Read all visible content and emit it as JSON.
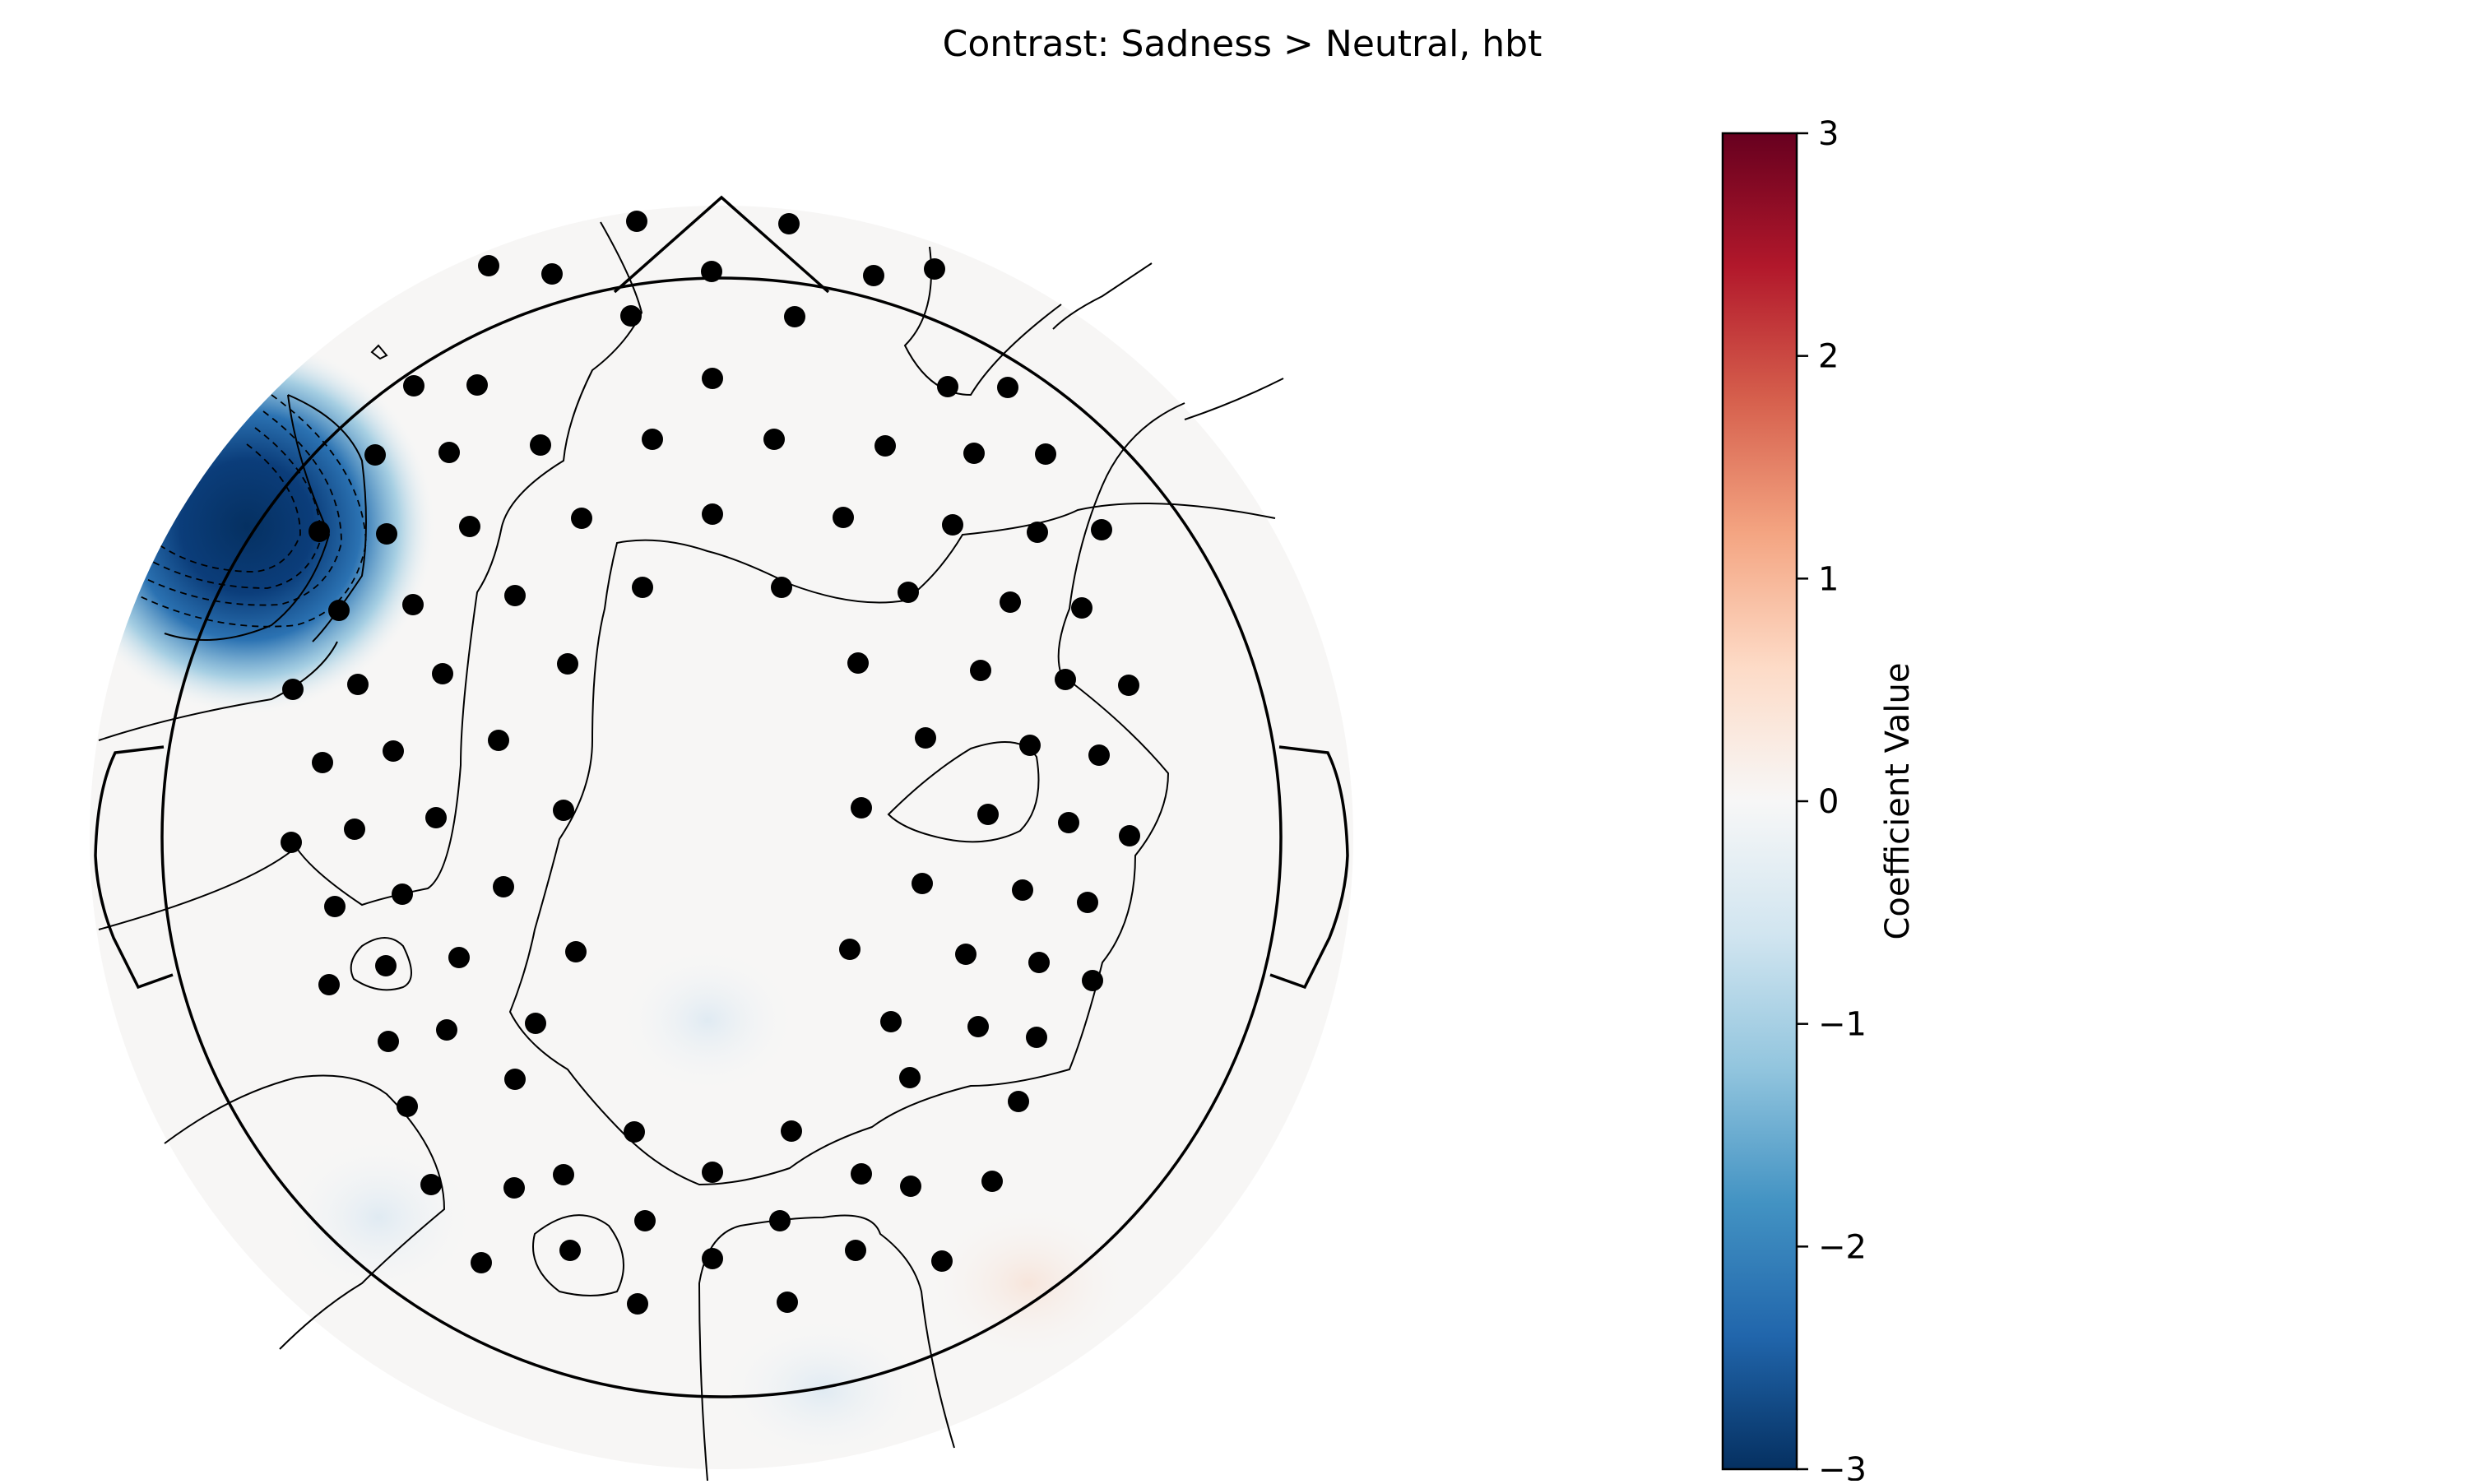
{
  "chart_data": {
    "type": "heatmap",
    "title": "Contrast: Sadness > Neutral, hbt",
    "colorbar": {
      "label": "Coefficient Value",
      "range": [
        -3,
        3
      ],
      "ticks": [
        3,
        2,
        1,
        0,
        -1,
        -2,
        -3
      ],
      "tick_labels": [
        "3",
        "2",
        "1",
        "0",
        "−1",
        "−2",
        "−3"
      ],
      "colormap": "RdBu_r",
      "colors": [
        "#053061",
        "#2166ac",
        "#4393c3",
        "#92c5de",
        "#d1e5f0",
        "#f7f7f7",
        "#fddbc7",
        "#f4a582",
        "#d6604d",
        "#b2182b",
        "#67001f"
      ]
    },
    "topomap": {
      "head": "head outline with nose and ears",
      "sensor_marker_color": "#000000",
      "sensor_count": 112,
      "grid": false
    }
  }
}
